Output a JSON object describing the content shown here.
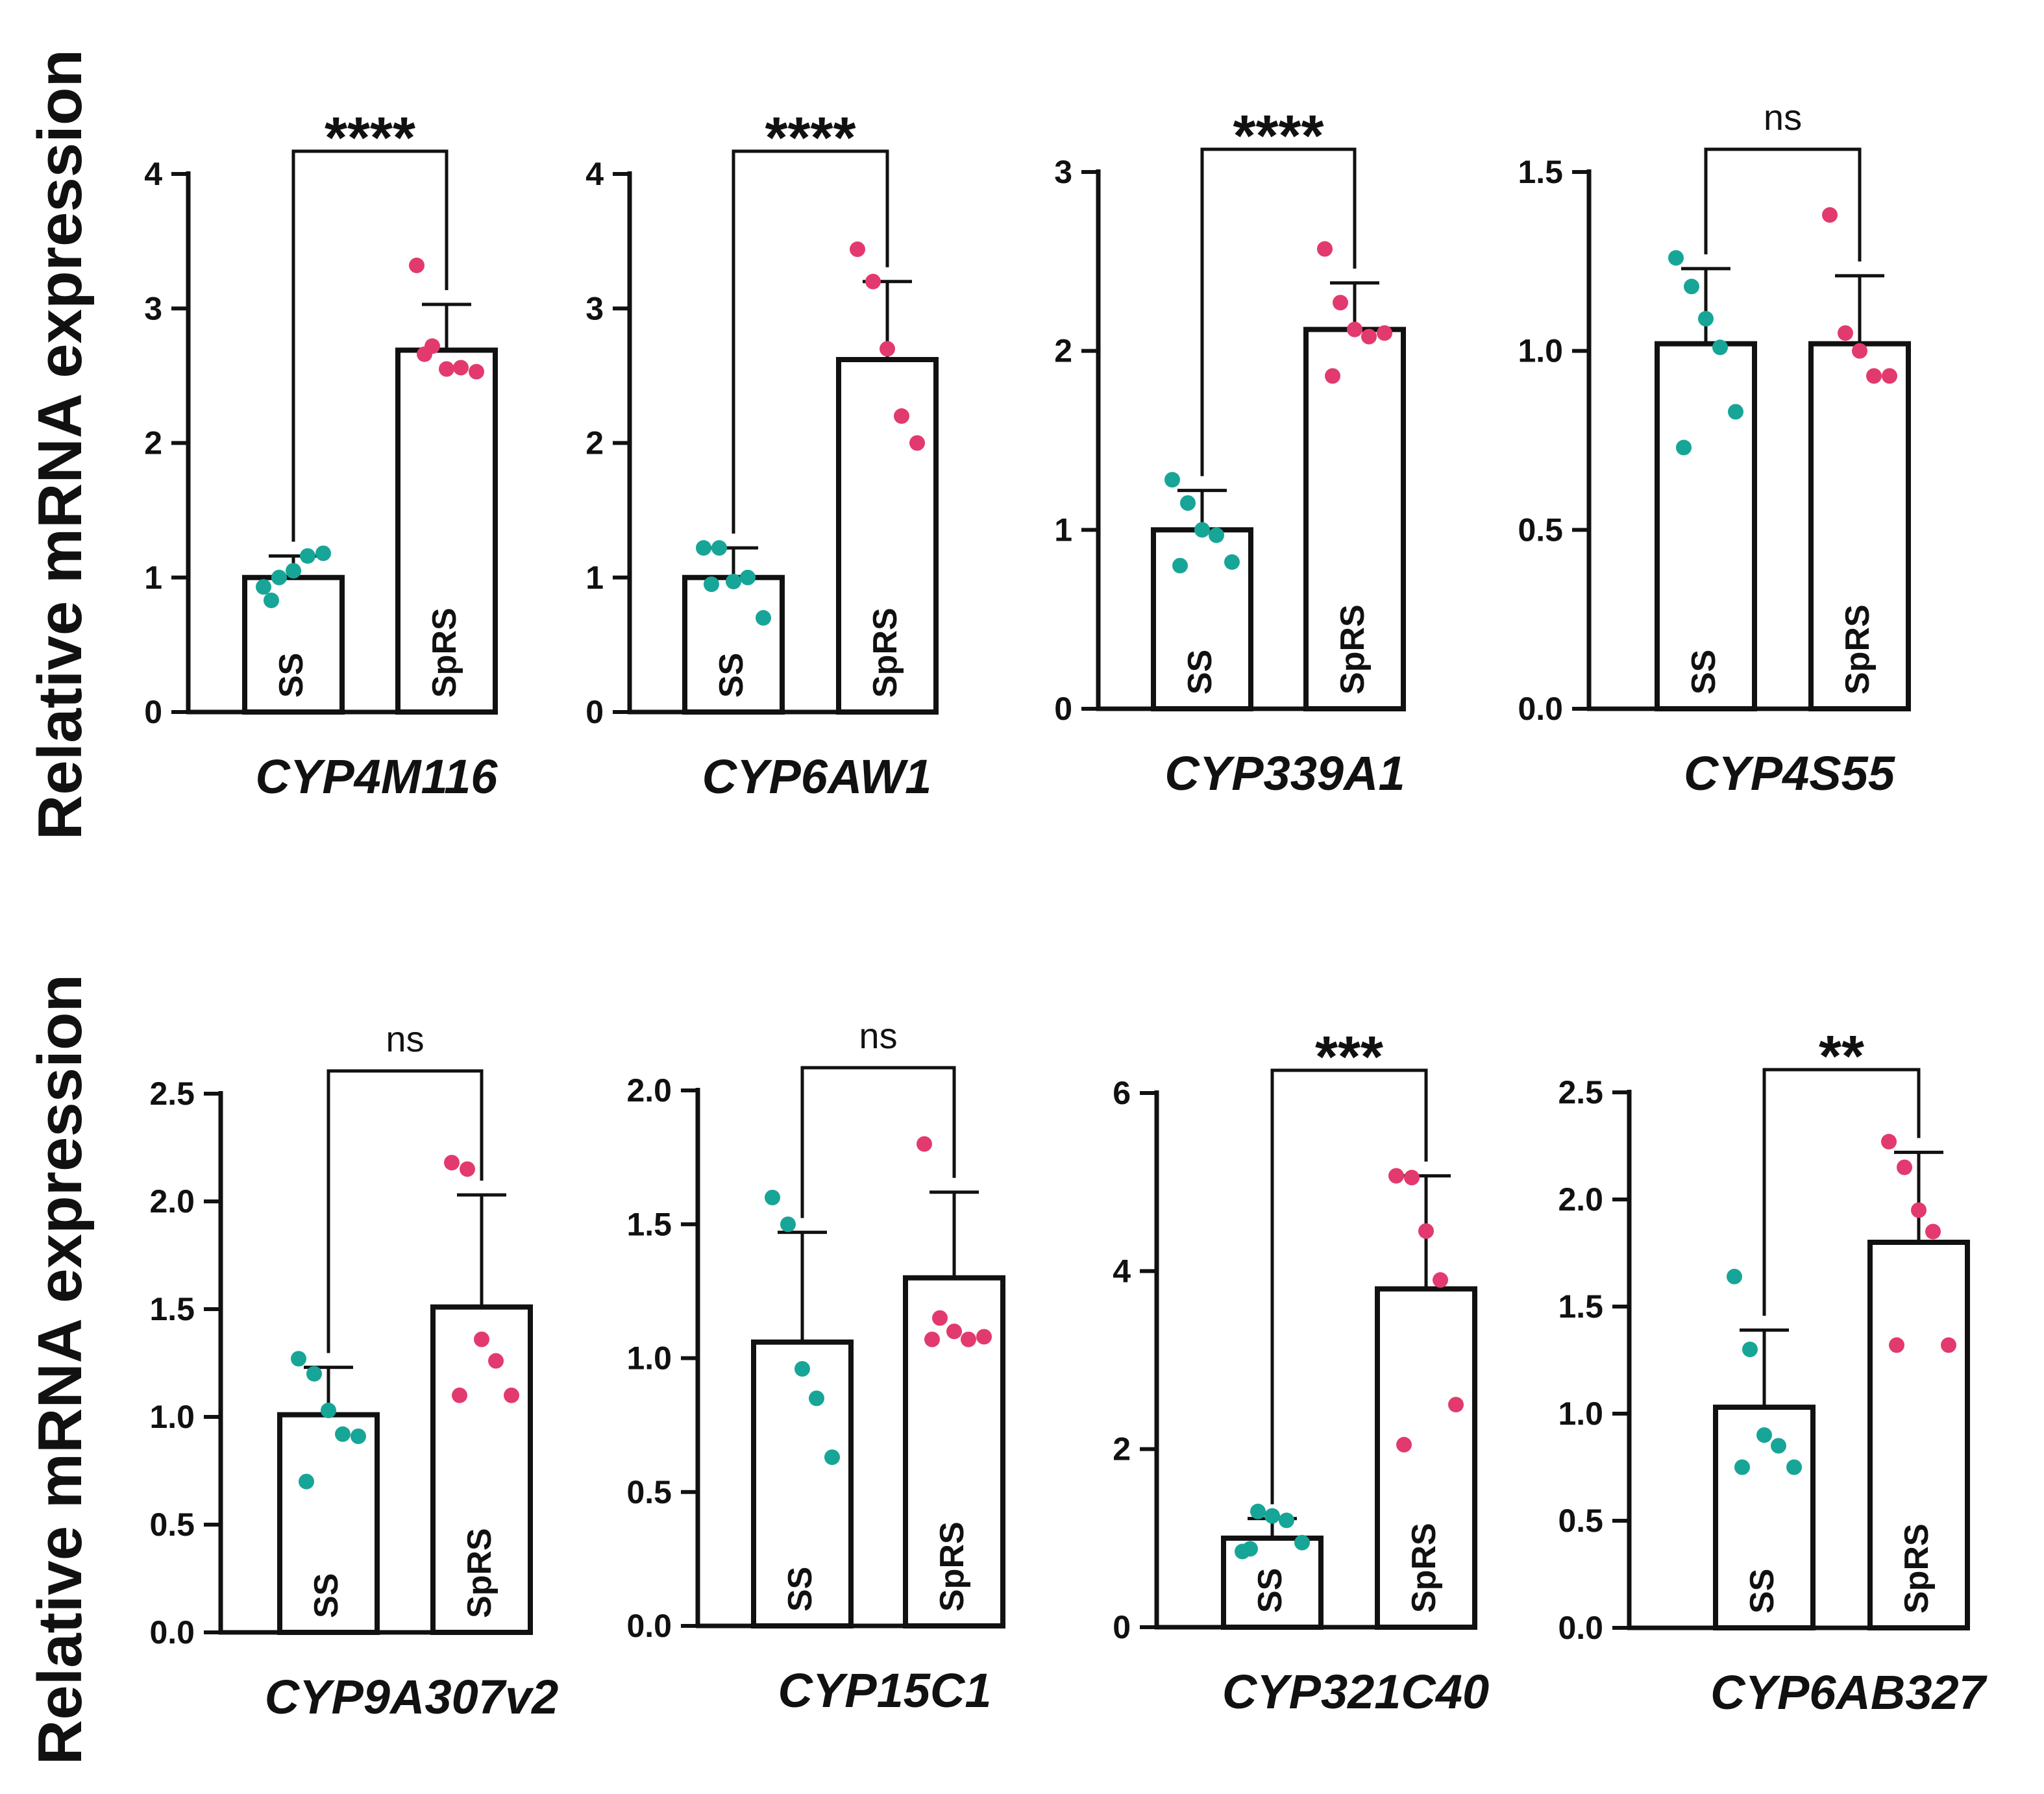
{
  "y_axis_label": "Relative mRNA expression",
  "colors": {
    "SS": "#17a597",
    "SpRS": "#e23a6e",
    "axis": "#111111"
  },
  "chart_data": [
    {
      "type": "bar",
      "gene": "CYP4M116",
      "ylim": [
        0,
        4
      ],
      "ticks": [
        "0",
        "1",
        "2",
        "3",
        "4"
      ],
      "ticks_num": [
        0,
        1,
        2,
        3,
        4
      ],
      "significance": "****",
      "groups": [
        {
          "label": "SS",
          "mean": 1.0,
          "sd": 0.16,
          "points": [
            0.93,
            1.0,
            1.05,
            1.16,
            1.18,
            0.83
          ]
        },
        {
          "label": "SpRS",
          "mean": 2.69,
          "sd": 0.34,
          "points": [
            3.32,
            2.72,
            2.55,
            2.56,
            2.53,
            2.66
          ]
        }
      ]
    },
    {
      "type": "bar",
      "gene": "CYP6AW1",
      "ylim": [
        0,
        4
      ],
      "ticks": [
        "0",
        "1",
        "2",
        "3",
        "4"
      ],
      "ticks_num": [
        0,
        1,
        2,
        3,
        4
      ],
      "significance": "****",
      "groups": [
        {
          "label": "SS",
          "mean": 1.0,
          "sd": 0.22,
          "points": [
            1.22,
            1.22,
            0.97,
            1.0,
            0.7,
            0.95
          ]
        },
        {
          "label": "SpRS",
          "mean": 2.62,
          "sd": 0.58,
          "points": [
            3.44,
            3.2,
            2.7,
            2.2,
            2.0
          ]
        }
      ]
    },
    {
      "type": "bar",
      "gene": "CYP339A1",
      "ylim": [
        0,
        3
      ],
      "ticks": [
        "0",
        "1",
        "2",
        "3"
      ],
      "ticks_num": [
        0,
        1,
        2,
        3
      ],
      "significance": "****",
      "groups": [
        {
          "label": "SS",
          "mean": 1.0,
          "sd": 0.22,
          "points": [
            1.28,
            1.15,
            1.0,
            0.97,
            0.82,
            0.8
          ]
        },
        {
          "label": "SpRS",
          "mean": 2.12,
          "sd": 0.26,
          "points": [
            2.57,
            2.27,
            2.12,
            2.08,
            2.1,
            1.86
          ]
        }
      ]
    },
    {
      "type": "bar",
      "gene": "CYP4S55",
      "ylim": [
        0,
        1.5
      ],
      "ticks": [
        "0.0",
        "0.5",
        "1.0",
        "1.5"
      ],
      "ticks_num": [
        0,
        0.5,
        1,
        1.5
      ],
      "significance": "ns",
      "groups": [
        {
          "label": "SS",
          "mean": 1.02,
          "sd": 0.21,
          "points": [
            1.26,
            1.18,
            1.09,
            1.01,
            0.83,
            0.73
          ]
        },
        {
          "label": "SpRS",
          "mean": 1.02,
          "sd": 0.19,
          "points": [
            1.38,
            1.05,
            1.0,
            0.93,
            0.93
          ]
        }
      ]
    },
    {
      "type": "bar",
      "gene": "CYP9A307v2",
      "ylim": [
        0,
        2.5
      ],
      "ticks": [
        "0.0",
        "0.5",
        "1.0",
        "1.5",
        "2.0",
        "2.5"
      ],
      "ticks_num": [
        0,
        0.5,
        1,
        1.5,
        2,
        2.5
      ],
      "significance": "ns",
      "groups": [
        {
          "label": "SS",
          "mean": 1.01,
          "sd": 0.22,
          "points": [
            1.27,
            1.2,
            1.03,
            0.92,
            0.91,
            0.7
          ]
        },
        {
          "label": "SpRS",
          "mean": 1.51,
          "sd": 0.52,
          "points": [
            2.18,
            2.15,
            1.36,
            1.26,
            1.1,
            1.1
          ]
        }
      ]
    },
    {
      "type": "bar",
      "gene": "CYP15C1",
      "ylim": [
        0,
        2.0
      ],
      "ticks": [
        "0.0",
        "0.5",
        "1.0",
        "1.5",
        "2.0"
      ],
      "ticks_num": [
        0,
        0.5,
        1,
        1.5,
        2
      ],
      "significance": "ns",
      "groups": [
        {
          "label": "SS",
          "mean": 1.06,
          "sd": 0.41,
          "points": [
            1.6,
            1.5,
            0.96,
            0.85,
            0.63
          ]
        },
        {
          "label": "SpRS",
          "mean": 1.3,
          "sd": 0.32,
          "points": [
            1.8,
            1.15,
            1.1,
            1.07,
            1.08,
            1.07
          ]
        }
      ]
    },
    {
      "type": "bar",
      "gene": "CYP321C40",
      "ylim": [
        0,
        6
      ],
      "ticks": [
        "0",
        "2",
        "4",
        "6"
      ],
      "ticks_num": [
        0,
        2,
        4,
        6
      ],
      "significance": "***",
      "groups": [
        {
          "label": "SS",
          "mean": 1.0,
          "sd": 0.22,
          "points": [
            0.85,
            1.3,
            1.25,
            1.2,
            0.95,
            0.88
          ]
        },
        {
          "label": "SpRS",
          "mean": 3.8,
          "sd": 1.27,
          "points": [
            5.07,
            5.05,
            4.45,
            3.9,
            2.5,
            2.05
          ]
        }
      ]
    },
    {
      "type": "bar",
      "gene": "CYP6AB327",
      "ylim": [
        0,
        2.5
      ],
      "ticks": [
        "0.0",
        "0.5",
        "1.0",
        "1.5",
        "2.0",
        "2.5"
      ],
      "ticks_num": [
        0,
        0.5,
        1,
        1.5,
        2,
        2.5
      ],
      "significance": "**",
      "groups": [
        {
          "label": "SS",
          "mean": 1.03,
          "sd": 0.36,
          "points": [
            1.64,
            1.3,
            0.9,
            0.85,
            0.75,
            0.75
          ]
        },
        {
          "label": "SpRS",
          "mean": 1.8,
          "sd": 0.42,
          "points": [
            2.27,
            2.15,
            1.95,
            1.85,
            1.32,
            1.32
          ]
        }
      ]
    }
  ]
}
